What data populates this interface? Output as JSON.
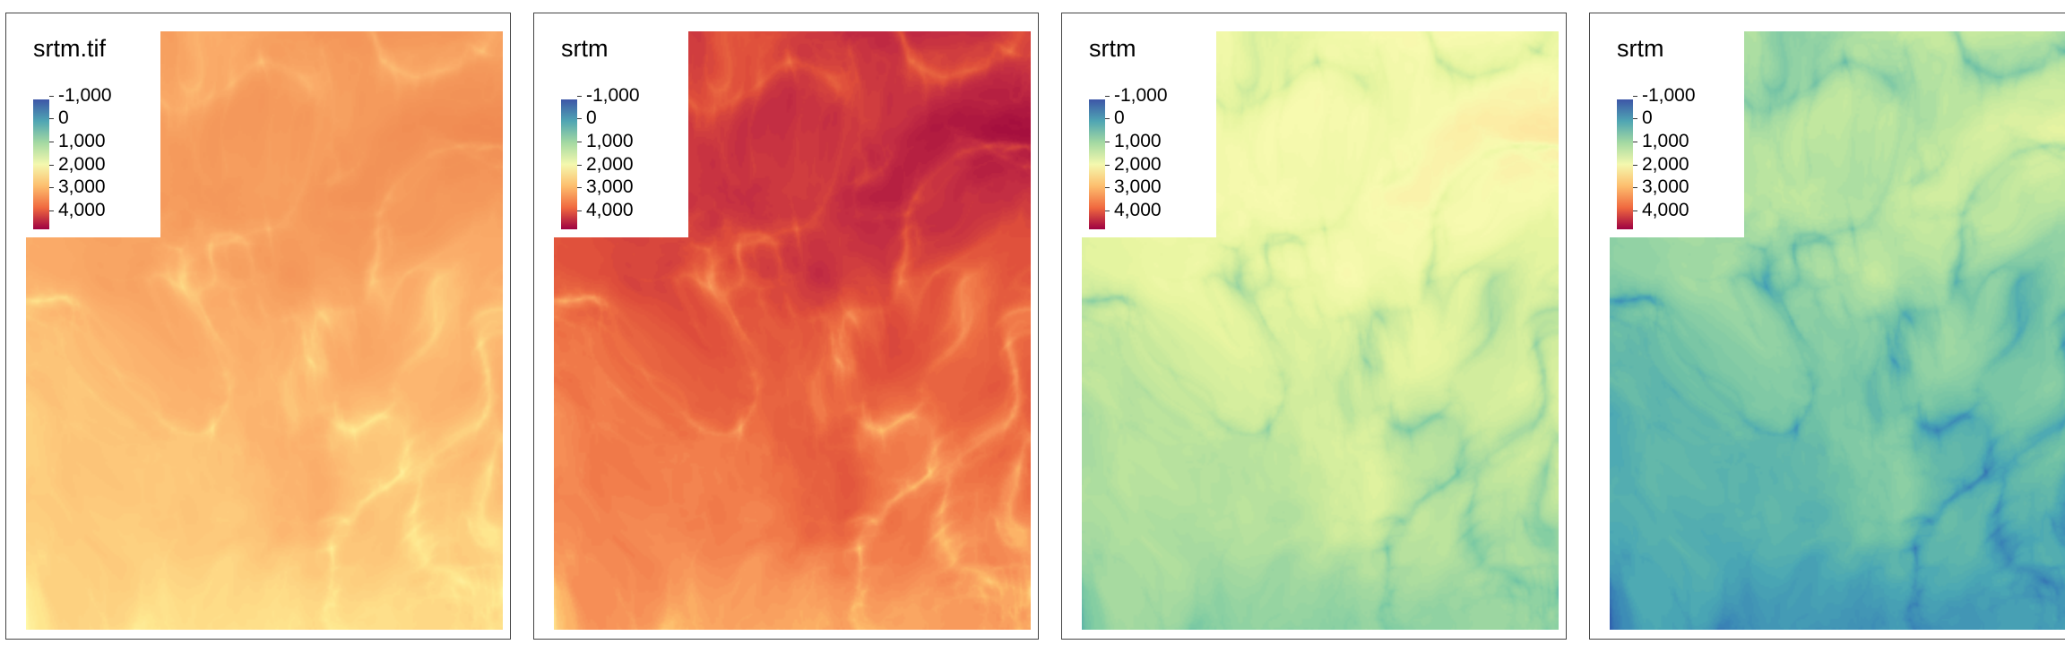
{
  "panels": [
    {
      "title": "srtm.tif",
      "palette": [
        "#fff8a8",
        "#fee68e",
        "#fdca7c",
        "#fbb06c",
        "#f59a5c",
        "#f08a52"
      ],
      "weights": {
        "r1": 0.55,
        "r2": 0.3,
        "n": 0.2
      },
      "legend": {
        "labels": [
          "-1,000",
          "0",
          "1,000",
          "2,000",
          "3,000",
          "4,000"
        ],
        "colors": [
          "#3d56a7",
          "#4fa5b3",
          "#a4d9a2",
          "#f4f8ae",
          "#fdbe6e",
          "#f0693f",
          "#9e0142"
        ]
      }
    },
    {
      "title": "srtm",
      "palette": [
        "#fee08b",
        "#fdbb6b",
        "#f79258",
        "#ed6e43",
        "#de4e3b",
        "#c22c43",
        "#a50f3e"
      ],
      "weights": {
        "r1": 0.55,
        "r2": 0.3,
        "n": 0.2
      },
      "legend": {
        "labels": [
          "-1,000",
          "0",
          "1,000",
          "2,000",
          "3,000",
          "4,000"
        ],
        "colors": [
          "#3d56a7",
          "#4fa5b3",
          "#a4d9a2",
          "#f4f8ae",
          "#fdbe6e",
          "#f0693f",
          "#9e0142"
        ]
      }
    },
    {
      "title": "srtm",
      "palette": [
        "#5fb6a6",
        "#7ecba3",
        "#a3d9a0",
        "#c7e89c",
        "#e7f5a0",
        "#f8fab0",
        "#fde7a0"
      ],
      "weights": {
        "r1": 0.55,
        "r2": 0.3,
        "n": 0.2
      },
      "legend": {
        "labels": [
          "-1,000",
          "0",
          "1,000",
          "2,000",
          "3,000",
          "4,000"
        ],
        "colors": [
          "#3d56a7",
          "#4fa5b3",
          "#a4d9a2",
          "#f4f8ae",
          "#fdbe6e",
          "#f0693f",
          "#9e0142"
        ]
      }
    },
    {
      "title": "srtm",
      "palette": [
        "#3060ae",
        "#3a86b6",
        "#4aa7b4",
        "#6ec0a6",
        "#96d4a4",
        "#c3e89f",
        "#e6f4a2"
      ],
      "weights": {
        "r1": 0.55,
        "r2": 0.3,
        "n": 0.2
      },
      "legend": {
        "labels": [
          "-1,000",
          "0",
          "1,000",
          "2,000",
          "3,000",
          "4,000"
        ],
        "colors": [
          "#3d56a7",
          "#4fa5b3",
          "#a4d9a2",
          "#f4f8ae",
          "#fdbe6e",
          "#f0693f",
          "#9e0142"
        ]
      }
    }
  ]
}
